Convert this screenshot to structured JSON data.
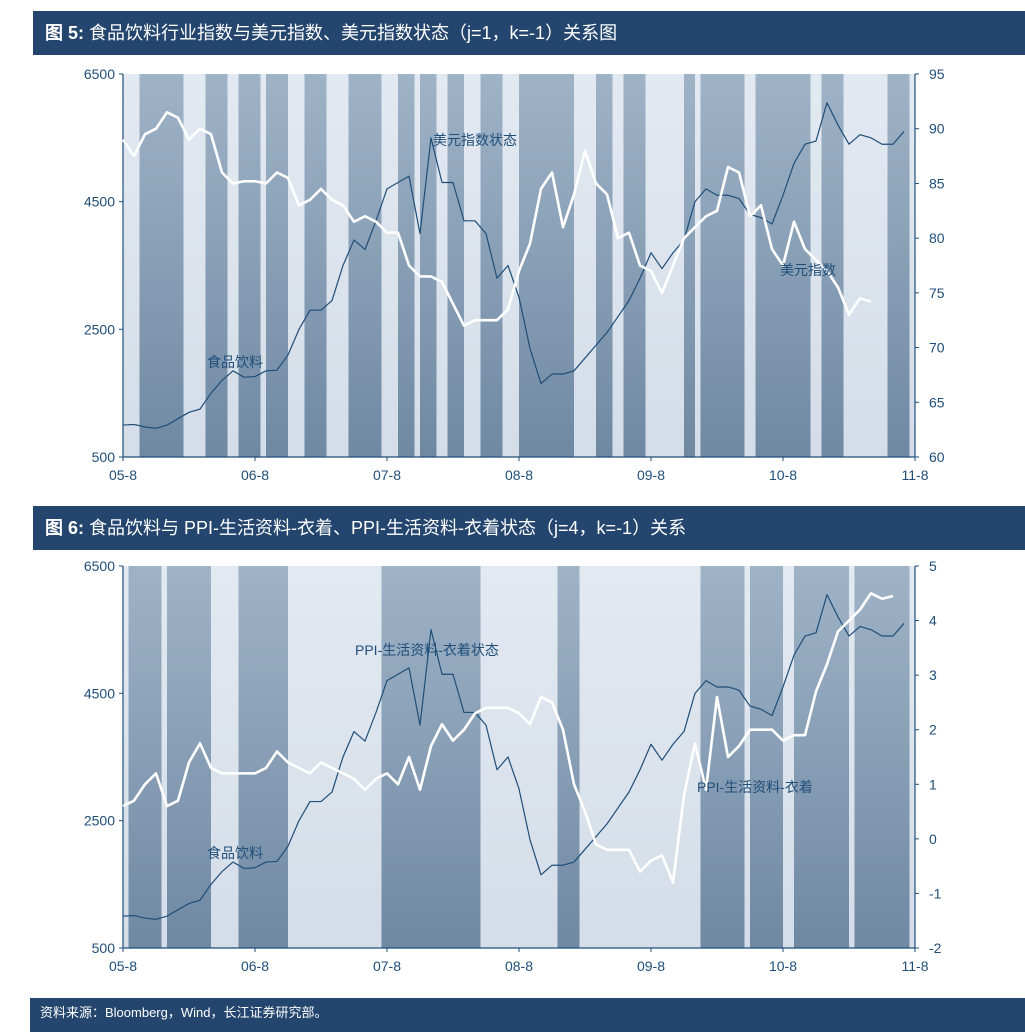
{
  "figure1": {
    "title_prefix": "图 5:",
    "title_text": "食品饮料行业指数与美元指数、美元指数状态（j=1，k=-1）关系图"
  },
  "figure2": {
    "title_prefix": "图 6:",
    "title_text": "食品饮料与 PPI-生活资料-衣着、PPI-生活资料-衣着状态（j=4，k=-1）关系"
  },
  "footer": {
    "source": "资料来源：Bloomberg，Wind，长江证券研究部。"
  },
  "colors": {
    "header_bg": "#24466e",
    "plot_bg": "#dfe6ef",
    "shade": "#7d95ad",
    "food_line": "#1f4e79",
    "state_line": "#1f4e79",
    "white_line": "#ffffff"
  },
  "chart_data": [
    {
      "type": "line",
      "title": "食品饮料行业指数与美元指数、美元指数状态（j=1，k=-1）关系图",
      "x_ticks": [
        "05-8",
        "06-8",
        "07-8",
        "08-8",
        "09-8",
        "10-8",
        "11-8"
      ],
      "x_range": [
        0,
        72
      ],
      "left_axis": {
        "ticks": [
          "6500",
          "4500",
          "2500",
          "500"
        ],
        "range": [
          500,
          6500
        ]
      },
      "right_axis": {
        "ticks": [
          "95",
          "90",
          "85",
          "80",
          "75",
          "70",
          "65",
          "60"
        ],
        "range": [
          60,
          95
        ]
      },
      "shaded_regions": [
        [
          1.5,
          5.5
        ],
        [
          7.5,
          9.5
        ],
        [
          10.5,
          12.5
        ],
        [
          13,
          15
        ],
        [
          16.5,
          18.5
        ],
        [
          20.5,
          23.5
        ],
        [
          25,
          26.5
        ],
        [
          27,
          28.5
        ],
        [
          29.5,
          31
        ],
        [
          32.5,
          34.5
        ],
        [
          36,
          41
        ],
        [
          43,
          44.5
        ],
        [
          45.5,
          47.5
        ],
        [
          51,
          52
        ],
        [
          52.5,
          56.5
        ],
        [
          57.5,
          62.5
        ],
        [
          63.5,
          65.5
        ],
        [
          69.5,
          71.5
        ]
      ],
      "series": [
        {
          "name": "食品饮料",
          "axis": "left",
          "values": [
            1000,
            1010,
            970,
            950,
            1000,
            1100,
            1200,
            1250,
            1500,
            1700,
            1850,
            1750,
            1760,
            1850,
            1860,
            2100,
            2500,
            2800,
            2800,
            2950,
            3500,
            3900,
            3750,
            4200,
            4700,
            4800,
            4900,
            4000,
            5500,
            4800,
            4800,
            4200,
            4200,
            4000,
            3300,
            3500,
            3000,
            2200,
            1650,
            1800,
            1800,
            1850,
            2050,
            2250,
            2450,
            2700,
            2950,
            3300,
            3700,
            3450,
            3700,
            3900,
            4500,
            4700,
            4600,
            4600,
            4550,
            4300,
            4250,
            4150,
            4600,
            5100,
            5400,
            5450,
            6050,
            5700,
            5400,
            5550,
            5500,
            5400,
            5400,
            5600
          ]
        },
        {
          "name": "美元指数",
          "axis": "right",
          "values": [
            89,
            87.5,
            89.5,
            90,
            91.5,
            91,
            89,
            90,
            89.5,
            86,
            85,
            85.2,
            85.2,
            85,
            86,
            85.5,
            83,
            83.5,
            84.5,
            83.5,
            83,
            81.5,
            82,
            81.5,
            80.5,
            80.5,
            77.5,
            76.5,
            76.5,
            76,
            74,
            72,
            72.5,
            72.5,
            72.5,
            73.5,
            77,
            79.5,
            84.5,
            86,
            81,
            84,
            88,
            85,
            84,
            80,
            80.5,
            77.5,
            77,
            75,
            77.5,
            80,
            81,
            82,
            82.5,
            86.5,
            86,
            82,
            83,
            79,
            77.5,
            81.5,
            79,
            78,
            77,
            75.5,
            73,
            74.5,
            74.2
          ]
        },
        {
          "name": "美元指数状态",
          "axis": "left",
          "values": [
            1000,
            1010,
            970,
            950,
            1000,
            1100,
            1200,
            1250,
            1500,
            1700,
            1850,
            1750,
            1760,
            1850,
            1860,
            2100,
            2500,
            2800,
            2800,
            2950,
            3500,
            3900,
            3750,
            4200,
            4700,
            4800,
            4900,
            4000,
            5500,
            4800,
            4800,
            4200,
            4200,
            4000,
            3300,
            3500,
            3000,
            2200,
            1650,
            1800,
            1800,
            1850,
            2050,
            2250,
            2450,
            2700,
            2950,
            3300,
            3700,
            3450,
            3700,
            3900,
            4500,
            4700,
            4600,
            4600,
            4550,
            4300,
            4250,
            4150,
            4600,
            5100,
            5400,
            5450,
            6050,
            5700,
            5400,
            5550,
            5500,
            5400,
            5400,
            5600
          ]
        }
      ],
      "annotations": [
        "美元指数状态",
        "食品饮料",
        "美元指数"
      ]
    },
    {
      "type": "line",
      "title": "食品饮料与 PPI-生活资料-衣着、PPI-生活资料-衣着状态（j=4，k=-1）关系",
      "x_ticks": [
        "05-8",
        "06-8",
        "07-8",
        "08-8",
        "09-8",
        "10-8",
        "11-8"
      ],
      "x_range": [
        0,
        72
      ],
      "left_axis": {
        "ticks": [
          "6500",
          "4500",
          "2500",
          "500"
        ],
        "range": [
          500,
          6500
        ]
      },
      "right_axis": {
        "ticks": [
          "5",
          "4",
          "3",
          "2",
          "1",
          "0",
          "-1",
          "-2"
        ],
        "range": [
          -2,
          5
        ]
      },
      "shaded_regions": [
        [
          0.5,
          3.5
        ],
        [
          4,
          8
        ],
        [
          10.5,
          15
        ],
        [
          23.5,
          32.5
        ],
        [
          39.5,
          41.5
        ],
        [
          52.5,
          56.5
        ],
        [
          57,
          60
        ],
        [
          61,
          66
        ],
        [
          66.5,
          71.5
        ]
      ],
      "series": [
        {
          "name": "食品饮料",
          "axis": "left",
          "values": [
            1000,
            1010,
            970,
            950,
            1000,
            1100,
            1200,
            1250,
            1500,
            1700,
            1850,
            1750,
            1760,
            1850,
            1860,
            2100,
            2500,
            2800,
            2800,
            2950,
            3500,
            3900,
            3750,
            4200,
            4700,
            4800,
            4900,
            4000,
            5500,
            4800,
            4800,
            4200,
            4200,
            4000,
            3300,
            3500,
            3000,
            2200,
            1650,
            1800,
            1800,
            1850,
            2050,
            2250,
            2450,
            2700,
            2950,
            3300,
            3700,
            3450,
            3700,
            3900,
            4500,
            4700,
            4600,
            4600,
            4550,
            4300,
            4250,
            4150,
            4600,
            5100,
            5400,
            5450,
            6050,
            5700,
            5400,
            5550,
            5500,
            5400,
            5400,
            5600
          ]
        },
        {
          "name": "PPI-生活资料-衣着",
          "axis": "right",
          "values": [
            0.6,
            0.7,
            1.0,
            1.2,
            0.6,
            0.7,
            1.4,
            1.75,
            1.3,
            1.2,
            1.2,
            1.2,
            1.2,
            1.3,
            1.6,
            1.4,
            1.3,
            1.2,
            1.4,
            1.3,
            1.2,
            1.1,
            0.9,
            1.1,
            1.2,
            1.0,
            1.5,
            0.9,
            1.7,
            2.1,
            1.8,
            2.0,
            2.3,
            2.4,
            2.4,
            2.4,
            2.3,
            2.1,
            2.6,
            2.5,
            2.0,
            1.0,
            0.5,
            -0.1,
            -0.2,
            -0.2,
            -0.2,
            -0.6,
            -0.4,
            -0.3,
            -0.8,
            0.8,
            1.75,
            0.9,
            2.6,
            1.5,
            1.7,
            2.0,
            2.0,
            2.0,
            1.8,
            1.9,
            1.9,
            2.7,
            3.2,
            3.8,
            4.0,
            4.2,
            4.5,
            4.4,
            4.45
          ]
        },
        {
          "name": "PPI-生活资料-衣着状态",
          "axis": "left",
          "values": [
            1000,
            1010,
            970,
            950,
            1000,
            1100,
            1200,
            1250,
            1500,
            1700,
            1850,
            1750,
            1760,
            1850,
            1860,
            2100,
            2500,
            2800,
            2800,
            2950,
            3500,
            3900,
            3750,
            4200,
            4700,
            4800,
            4900,
            4000,
            5500,
            4800,
            4800,
            4200,
            4200,
            4000,
            3300,
            3500,
            3000,
            2200,
            1650,
            1800,
            1800,
            1850,
            2050,
            2250,
            2450,
            2700,
            2950,
            3300,
            3700,
            3450,
            3700,
            3900,
            4500,
            4700,
            4600,
            4600,
            4550,
            4300,
            4250,
            4150,
            4600,
            5100,
            5400,
            5450,
            6050,
            5700,
            5400,
            5550,
            5500,
            5400,
            5400,
            5600
          ]
        }
      ],
      "annotations": [
        "PPI-生活资料-衣着状态",
        "食品饮料",
        "PPI-生活资料-衣着"
      ]
    }
  ]
}
